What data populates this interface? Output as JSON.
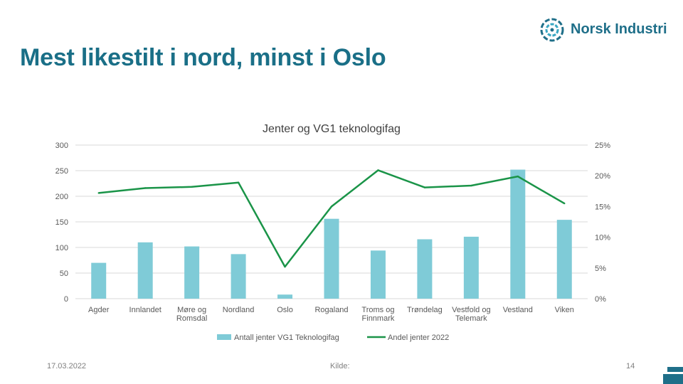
{
  "header": {
    "title": "Mest likestilt i nord, minst i Oslo",
    "logo_text": "Norsk Industri"
  },
  "footer": {
    "date": "17.03.2022",
    "source": "Kilde:",
    "page": "14"
  },
  "colors": {
    "title": "#1a6f87",
    "bar": "#7fcbd7",
    "line": "#1a9448",
    "logo": "#1f6f89"
  },
  "chart_data": {
    "type": "bar",
    "title": "Jenter og VG1 teknologifag",
    "categories": [
      "Agder",
      "Innlandet",
      "Møre og Romsdal",
      "Nordland",
      "Oslo",
      "Rogaland",
      "Troms og Finnmark",
      "Trøndelag",
      "Vestfold og Telemark",
      "Vestland",
      "Viken"
    ],
    "category_lines": [
      [
        "Agder"
      ],
      [
        "Innlandet"
      ],
      [
        "Møre og",
        "Romsdal"
      ],
      [
        "Nordland"
      ],
      [
        "Oslo"
      ],
      [
        "Rogaland"
      ],
      [
        "Troms og",
        "Finnmark"
      ],
      [
        "Trøndelag"
      ],
      [
        "Vestfold og",
        "Telemark"
      ],
      [
        "Vestland"
      ],
      [
        "Viken"
      ]
    ],
    "series": [
      {
        "name": "Antall jenter VG1 Teknologifag",
        "type": "bar",
        "axis": "left",
        "values": [
          70,
          110,
          102,
          87,
          8,
          156,
          94,
          116,
          121,
          252,
          154
        ]
      },
      {
        "name": "Andel jenter 2022",
        "type": "line",
        "axis": "right",
        "values": [
          0.172,
          0.18,
          0.182,
          0.189,
          0.052,
          0.15,
          0.209,
          0.181,
          0.184,
          0.199,
          0.155
        ]
      }
    ],
    "ylim_left": [
      0,
      300
    ],
    "yticks_left": [
      "0",
      "50",
      "100",
      "150",
      "200",
      "250",
      "300"
    ],
    "ylim_right": [
      0,
      0.25
    ],
    "yticks_right": [
      "0%",
      "5%",
      "10%",
      "15%",
      "20%",
      "25%"
    ],
    "grid": true,
    "legend_position": "bottom"
  }
}
